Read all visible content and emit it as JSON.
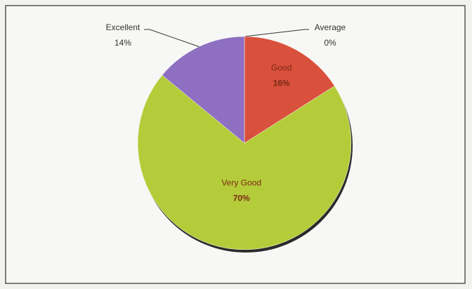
{
  "chart_data": {
    "type": "pie",
    "categories": [
      "Average",
      "Good",
      "Very Good",
      "Excellent"
    ],
    "values": [
      0,
      16,
      70,
      14
    ],
    "value_labels": [
      "0%",
      "16%",
      "70%",
      "14%"
    ],
    "colors": [
      "#9aa0a6",
      "#d9503c",
      "#b5cc3a",
      "#8e6fc1"
    ]
  }
}
